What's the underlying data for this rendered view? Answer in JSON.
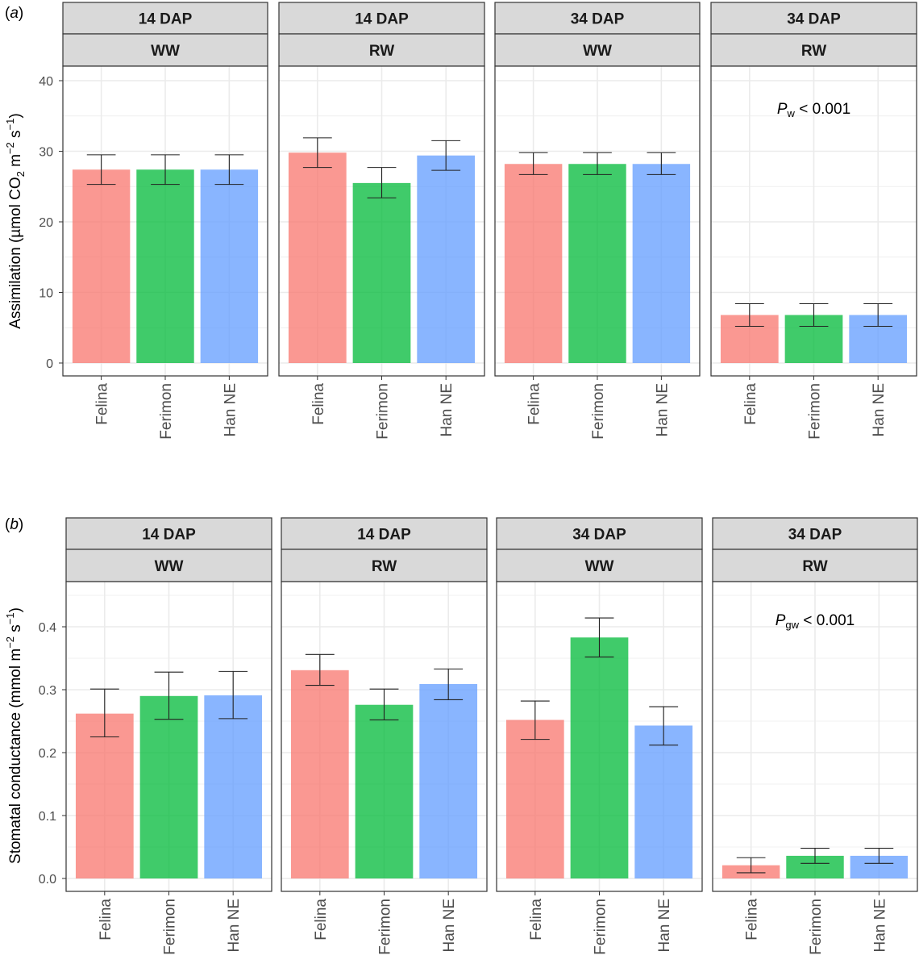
{
  "colors": {
    "Felina": "#f8766d",
    "Ferimon": "#00ba38",
    "Han NE": "#619cff",
    "strip_fill": "#d9d9d9",
    "grid": "#ebebeb",
    "axis_text": "#4d4d4d"
  },
  "chart_data": [
    {
      "type": "bar",
      "panel_tag": "a",
      "ylabel": "Assimilation (µmol CO2 m−2 s−1)",
      "ylabel_parts": {
        "pre": "Assimilation (µmol CO",
        "sub": "2",
        "mid1": " m",
        "sup1": "−2",
        "mid2": " s",
        "sup2": "−1",
        "post": ")"
      },
      "ylim": [
        0,
        40
      ],
      "yticks": [
        0,
        10,
        20,
        30,
        40
      ],
      "ytick_labels": [
        "0",
        "10",
        "20",
        "30",
        "40"
      ],
      "categories": [
        "Felina",
        "Ferimon",
        "Han NE"
      ],
      "facets": [
        {
          "time": "14 DAP",
          "water": "WW",
          "values": [
            27.4,
            27.4,
            27.4
          ],
          "err_low": [
            25.3,
            25.3,
            25.3
          ],
          "err_high": [
            29.5,
            29.5,
            29.5
          ]
        },
        {
          "time": "14 DAP",
          "water": "RW",
          "values": [
            29.8,
            25.5,
            29.4
          ],
          "err_low": [
            27.7,
            23.4,
            27.3
          ],
          "err_high": [
            31.9,
            27.7,
            31.5
          ]
        },
        {
          "time": "34 DAP",
          "water": "WW",
          "values": [
            28.2,
            28.2,
            28.2
          ],
          "err_low": [
            26.7,
            26.7,
            26.7
          ],
          "err_high": [
            29.8,
            29.8,
            29.8
          ]
        },
        {
          "time": "34 DAP",
          "water": "RW",
          "values": [
            6.8,
            6.8,
            6.8
          ],
          "err_low": [
            5.2,
            5.2,
            5.2
          ],
          "err_high": [
            8.4,
            8.4,
            8.4
          ],
          "annotation": {
            "p": "P",
            "sub": "w",
            "rest": " < 0.001"
          }
        }
      ]
    },
    {
      "type": "bar",
      "panel_tag": "b",
      "ylabel": "Stomatal conductance (mmol m−2 s−1)",
      "ylabel_parts": {
        "pre": "Stomatal conductance (mmol m",
        "sub": "",
        "mid1": "",
        "sup1": "−2",
        "mid2": " s",
        "sup2": "−1",
        "post": ")"
      },
      "ylim": [
        0,
        0.45
      ],
      "yticks": [
        0,
        0.1,
        0.2,
        0.3,
        0.4
      ],
      "ytick_labels": [
        "0.0",
        "0.1",
        "0.2",
        "0.3",
        "0.4"
      ],
      "categories": [
        "Felina",
        "Ferimon",
        "Han NE"
      ],
      "facets": [
        {
          "time": "14 DAP",
          "water": "WW",
          "values": [
            0.262,
            0.29,
            0.291
          ],
          "err_low": [
            0.225,
            0.253,
            0.254
          ],
          "err_high": [
            0.301,
            0.328,
            0.329
          ]
        },
        {
          "time": "14 DAP",
          "water": "RW",
          "values": [
            0.331,
            0.276,
            0.309
          ],
          "err_low": [
            0.307,
            0.252,
            0.284
          ],
          "err_high": [
            0.356,
            0.301,
            0.333
          ]
        },
        {
          "time": "34 DAP",
          "water": "WW",
          "values": [
            0.252,
            0.383,
            0.243
          ],
          "err_low": [
            0.221,
            0.352,
            0.212
          ],
          "err_high": [
            0.282,
            0.414,
            0.273
          ]
        },
        {
          "time": "34 DAP",
          "water": "RW",
          "values": [
            0.021,
            0.036,
            0.036
          ],
          "err_low": [
            0.009,
            0.024,
            0.024
          ],
          "err_high": [
            0.033,
            0.048,
            0.048
          ],
          "annotation": {
            "p": "P",
            "sub": "gw",
            "rest": " < 0.001"
          }
        }
      ]
    }
  ]
}
